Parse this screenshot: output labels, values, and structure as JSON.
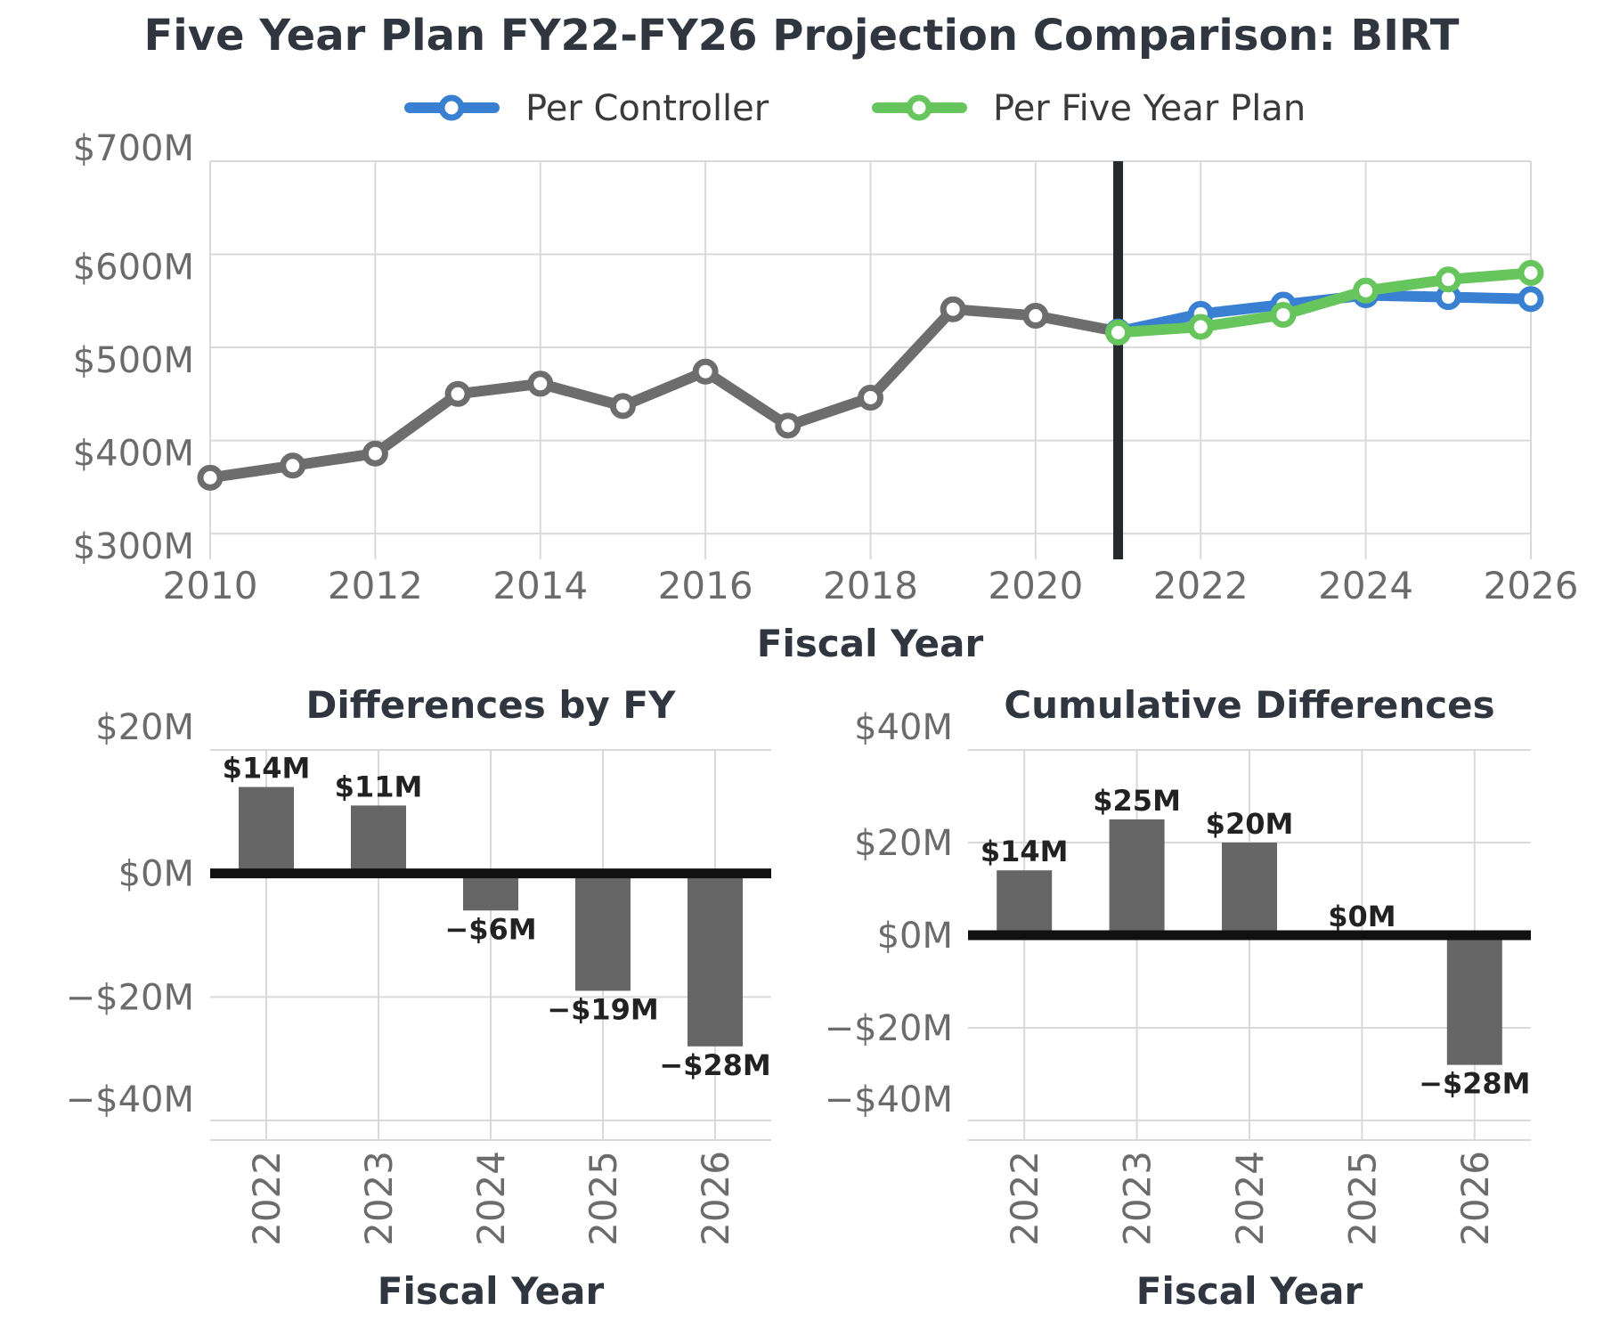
{
  "title": "Five Year Plan FY22-FY26 Projection Comparison: BIRT",
  "colors": {
    "history": "#6d6d6d",
    "controller": "#3a80d2",
    "plan": "#66c55c",
    "bar": "#666666",
    "zero_line": "#111111",
    "divider": "#24292e"
  },
  "chart_data": [
    {
      "id": "main",
      "type": "line",
      "xlabel": "Fiscal Year",
      "ylabel": "",
      "xlim": [
        2010,
        2026
      ],
      "ylim": [
        280,
        700
      ],
      "x_ticks": [
        2010,
        2012,
        2014,
        2016,
        2018,
        2020,
        2022,
        2024,
        2026
      ],
      "x_tick_labels": [
        "2010",
        "2012",
        "2014",
        "2016",
        "2018",
        "2020",
        "2022",
        "2024",
        "2026"
      ],
      "y_ticks": [
        300,
        400,
        500,
        600,
        700
      ],
      "y_tick_labels": [
        "$300M",
        "$400M",
        "$500M",
        "$600M",
        "$700M"
      ],
      "divider_x": 2021,
      "legend_position": "top-center",
      "legend": [
        {
          "name": "Per Controller",
          "color": "#3a80d2"
        },
        {
          "name": "Per Five Year Plan",
          "color": "#66c55c"
        }
      ],
      "series": [
        {
          "key": "history",
          "x": [
            2010,
            2011,
            2012,
            2013,
            2014,
            2015,
            2016,
            2017,
            2018,
            2019,
            2020,
            2021
          ],
          "values": [
            360,
            373,
            386,
            450,
            461,
            437,
            474,
            416,
            446,
            541,
            534,
            517
          ]
        },
        {
          "key": "controller",
          "name": "Per Controller",
          "x": [
            2021,
            2022,
            2023,
            2024,
            2025,
            2026
          ],
          "values": [
            517,
            536,
            546,
            556,
            554,
            552
          ]
        },
        {
          "key": "plan",
          "name": "Per Five Year Plan",
          "x": [
            2021,
            2022,
            2023,
            2024,
            2025,
            2026
          ],
          "values": [
            516,
            522,
            535,
            561,
            573,
            580
          ]
        }
      ]
    },
    {
      "id": "diff",
      "type": "bar",
      "title": "Differences by FY",
      "xlabel": "Fiscal Year",
      "categories": [
        "2022",
        "2023",
        "2024",
        "2025",
        "2026"
      ],
      "values": [
        14,
        11,
        -6,
        -19,
        -28
      ],
      "value_labels": [
        "$14M",
        "$11M",
        "−$6M",
        "−$19M",
        "−$28M"
      ],
      "ylim": [
        -40,
        20
      ],
      "y_ticks": [
        -40,
        -20,
        0,
        20
      ],
      "y_tick_labels": [
        "−$40M",
        "−$20M",
        "$0M",
        "$20M"
      ]
    },
    {
      "id": "cum",
      "type": "bar",
      "title": "Cumulative Differences",
      "xlabel": "Fiscal Year",
      "categories": [
        "2022",
        "2023",
        "2024",
        "2025",
        "2026"
      ],
      "values": [
        14,
        25,
        20,
        0,
        -28
      ],
      "value_labels": [
        "$14M",
        "$25M",
        "$20M",
        "$0M",
        "−$28M"
      ],
      "ylim": [
        -40,
        40
      ],
      "y_ticks": [
        -40,
        -20,
        0,
        20,
        40
      ],
      "y_tick_labels": [
        "−$40M",
        "−$20M",
        "$0M",
        "$20M",
        "$40M"
      ]
    }
  ]
}
